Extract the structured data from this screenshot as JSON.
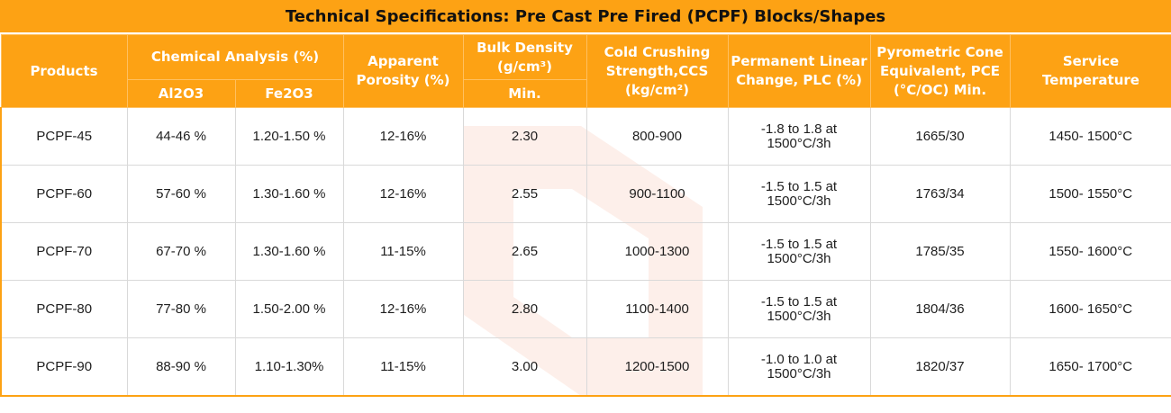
{
  "title": "Technical Specifications: Pre Cast Pre Fired (PCPF) Blocks/Shapes",
  "headers": {
    "products": "Products",
    "chemical_analysis": "Chemical Analysis (%)",
    "al2o3": "Al2O3",
    "fe2o3": "Fe2O3",
    "apparent_porosity": "Apparent Porosity (%)",
    "bulk_density": "Bulk Density (g/cm³)",
    "bulk_density_min": "Min.",
    "ccs": "Cold Crushing Strength,CCS (kg/cm²)",
    "plc": "Permanent Linear Change, PLC (%)",
    "pce": "Pyrometric Cone Equivalent, PCE (°C/OC) Min.",
    "service_temp": "Service Temperature"
  },
  "rows": [
    {
      "product": "PCPF-45",
      "al2o3": "44-46 %",
      "fe2o3": "1.20-1.50 %",
      "porosity": "12-16%",
      "density": "2.30",
      "ccs": "800-900",
      "plc": "-1.8 to 1.8 at 1500°C/3h",
      "pce": "1665/30",
      "service": "1450- 1500°C"
    },
    {
      "product": "PCPF-60",
      "al2o3": "57-60 %",
      "fe2o3": "1.30-1.60 %",
      "porosity": "12-16%",
      "density": "2.55",
      "ccs": "900-1100",
      "plc": "-1.5 to 1.5 at 1500°C/3h",
      "pce": "1763/34",
      "service": "1500- 1550°C"
    },
    {
      "product": "PCPF-70",
      "al2o3": "67-70 %",
      "fe2o3": "1.30-1.60 %",
      "porosity": "11-15%",
      "density": "2.65",
      "ccs": "1000-1300",
      "plc": "-1.5 to 1.5 at 1500°C/3h",
      "pce": "1785/35",
      "service": "1550- 1600°C"
    },
    {
      "product": "PCPF-80",
      "al2o3": "77-80 %",
      "fe2o3": "1.50-2.00 %",
      "porosity": "12-16%",
      "density": "2.80",
      "ccs": "1100-1400",
      "plc": "-1.5 to 1.5 at 1500°C/3h",
      "pce": "1804/36",
      "service": "1600- 1650°C"
    },
    {
      "product": "PCPF-90",
      "al2o3": "88-90 %",
      "fe2o3": "1.10-1.30%",
      "porosity": "11-15%",
      "density": "3.00",
      "ccs": "1200-1500",
      "plc": "-1.0 to 1.0 at 1500°C/3h",
      "pce": "1820/37",
      "service": "1650- 1700°C"
    }
  ],
  "colors": {
    "header_bg": "#fda214",
    "header_text": "#ffffff",
    "title_text": "#111111",
    "watermark": "#f05a22"
  },
  "icons": {
    "watermark": "logo-watermark-icon"
  }
}
